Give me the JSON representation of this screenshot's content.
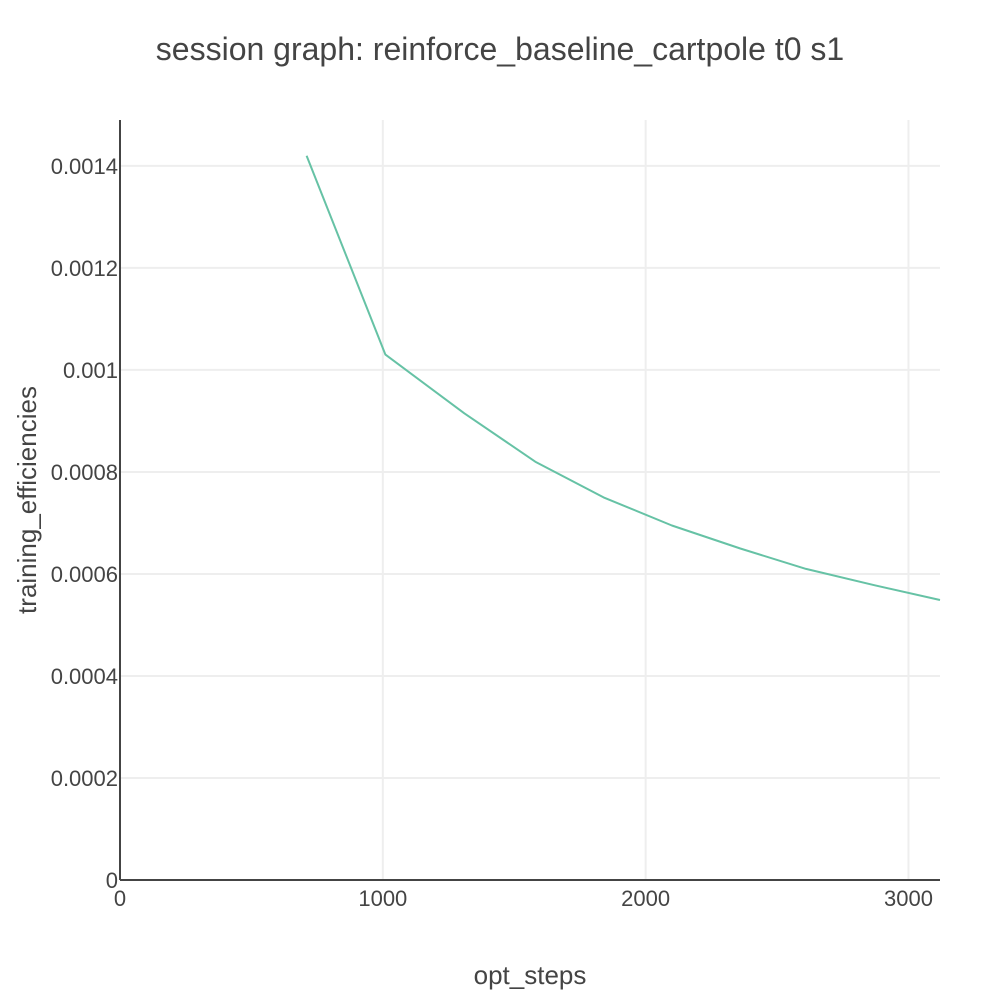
{
  "chart_data": {
    "type": "line",
    "title": "session graph: reinforce_baseline_cartpole t0 s1",
    "xlabel": "opt_steps",
    "ylabel": "training_efficiencies",
    "xlim": [
      0,
      3120
    ],
    "ylim": [
      0,
      0.00149
    ],
    "x_ticks": [
      0,
      1000,
      2000,
      3000
    ],
    "x_tick_labels": [
      "0",
      "1000",
      "2000",
      "3000"
    ],
    "y_ticks": [
      0,
      0.0002,
      0.0004,
      0.0006,
      0.0008,
      0.001,
      0.0012,
      0.0014
    ],
    "y_tick_labels": [
      "0",
      "0.0002",
      "0.0004",
      "0.0006",
      "0.0008",
      "0.001",
      "0.0012",
      "0.0014"
    ],
    "grid": true,
    "color": "#66c2a5",
    "series": [
      {
        "x": [
          710,
          1010,
          1310,
          1580,
          1840,
          2100,
          2360,
          2610,
          2870,
          3120
        ],
        "y": [
          0.00142,
          0.00103,
          0.000915,
          0.00082,
          0.00075,
          0.000695,
          0.00065,
          0.00061,
          0.000578,
          0.000549
        ]
      }
    ]
  }
}
